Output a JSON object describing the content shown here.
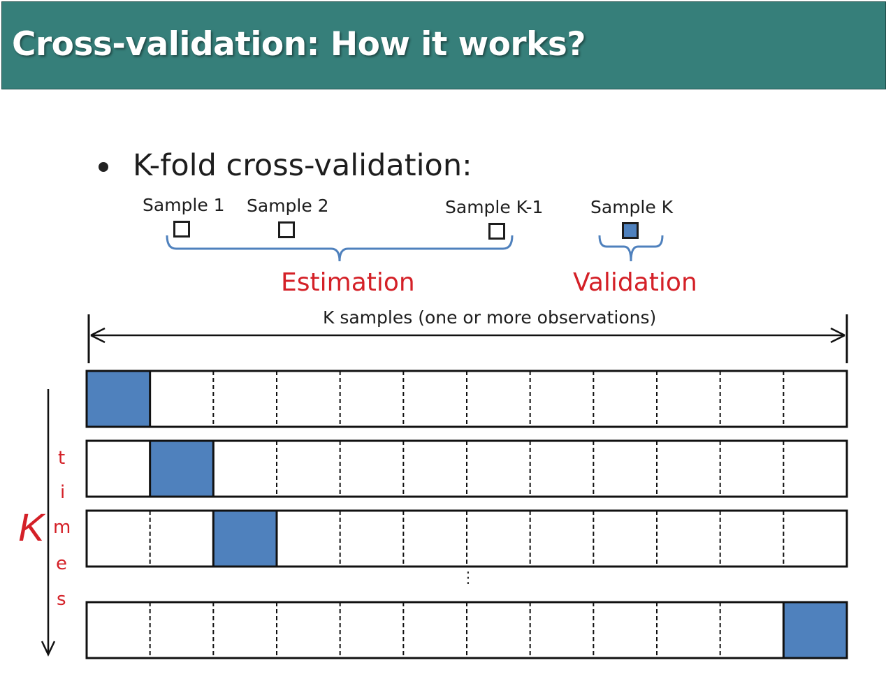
{
  "title": "Cross-validation: How it works?",
  "bullet": "K-fold cross-validation:",
  "samples": [
    {
      "label": "Sample 1",
      "filled": false
    },
    {
      "label": "Sample 2",
      "filled": false
    },
    {
      "label": "Sample K-1",
      "filled": false
    },
    {
      "label": "Sample K",
      "filled": true
    }
  ],
  "estimation_label": "Estimation",
  "validation_label": "Validation",
  "span_label": "K samples (one or more observations)",
  "k_label": "K",
  "times_letters": [
    "t",
    "i",
    "m",
    "e",
    "s"
  ],
  "ellipsis": "⋮",
  "folds": {
    "columns": 12,
    "rows_highlight_index": [
      0,
      1,
      2,
      11
    ]
  },
  "colors": {
    "title_bg": "#367f7a",
    "highlight": "#4f81bd",
    "brace": "#4f81bd",
    "accent_red": "#d42027"
  }
}
